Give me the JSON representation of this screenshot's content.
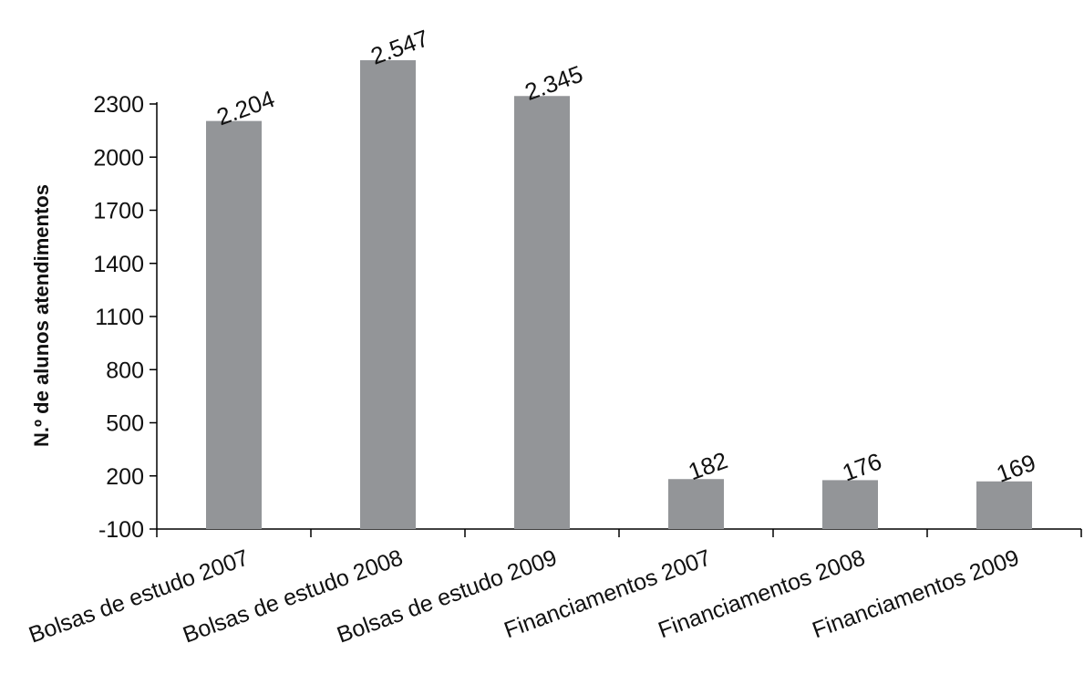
{
  "chart_data": {
    "type": "bar",
    "title": "",
    "xlabel": "",
    "ylabel": "N.º de alunos atendimentos",
    "categories": [
      "Bolsas de estudo 2007",
      "Bolsas de estudo 2008",
      "Bolsas de estudo 2009",
      "Financiamentos 2007",
      "Financiamentos 2008",
      "Financiamentos 2009"
    ],
    "values": [
      2204,
      2547,
      2345,
      182,
      176,
      169
    ],
    "data_labels": [
      "2.204",
      "2.547",
      "2.345",
      "182",
      "176",
      "169"
    ],
    "yticks": [
      -100,
      200,
      500,
      800,
      1100,
      1400,
      1700,
      2000,
      2300
    ],
    "ytick_labels": [
      "-100",
      "200",
      "500",
      "800",
      "1100",
      "1400",
      "1700",
      "2000",
      "2300"
    ],
    "ylim": [
      -100,
      2300
    ],
    "grid": false,
    "legend": "none",
    "bar_color": "#939598"
  }
}
